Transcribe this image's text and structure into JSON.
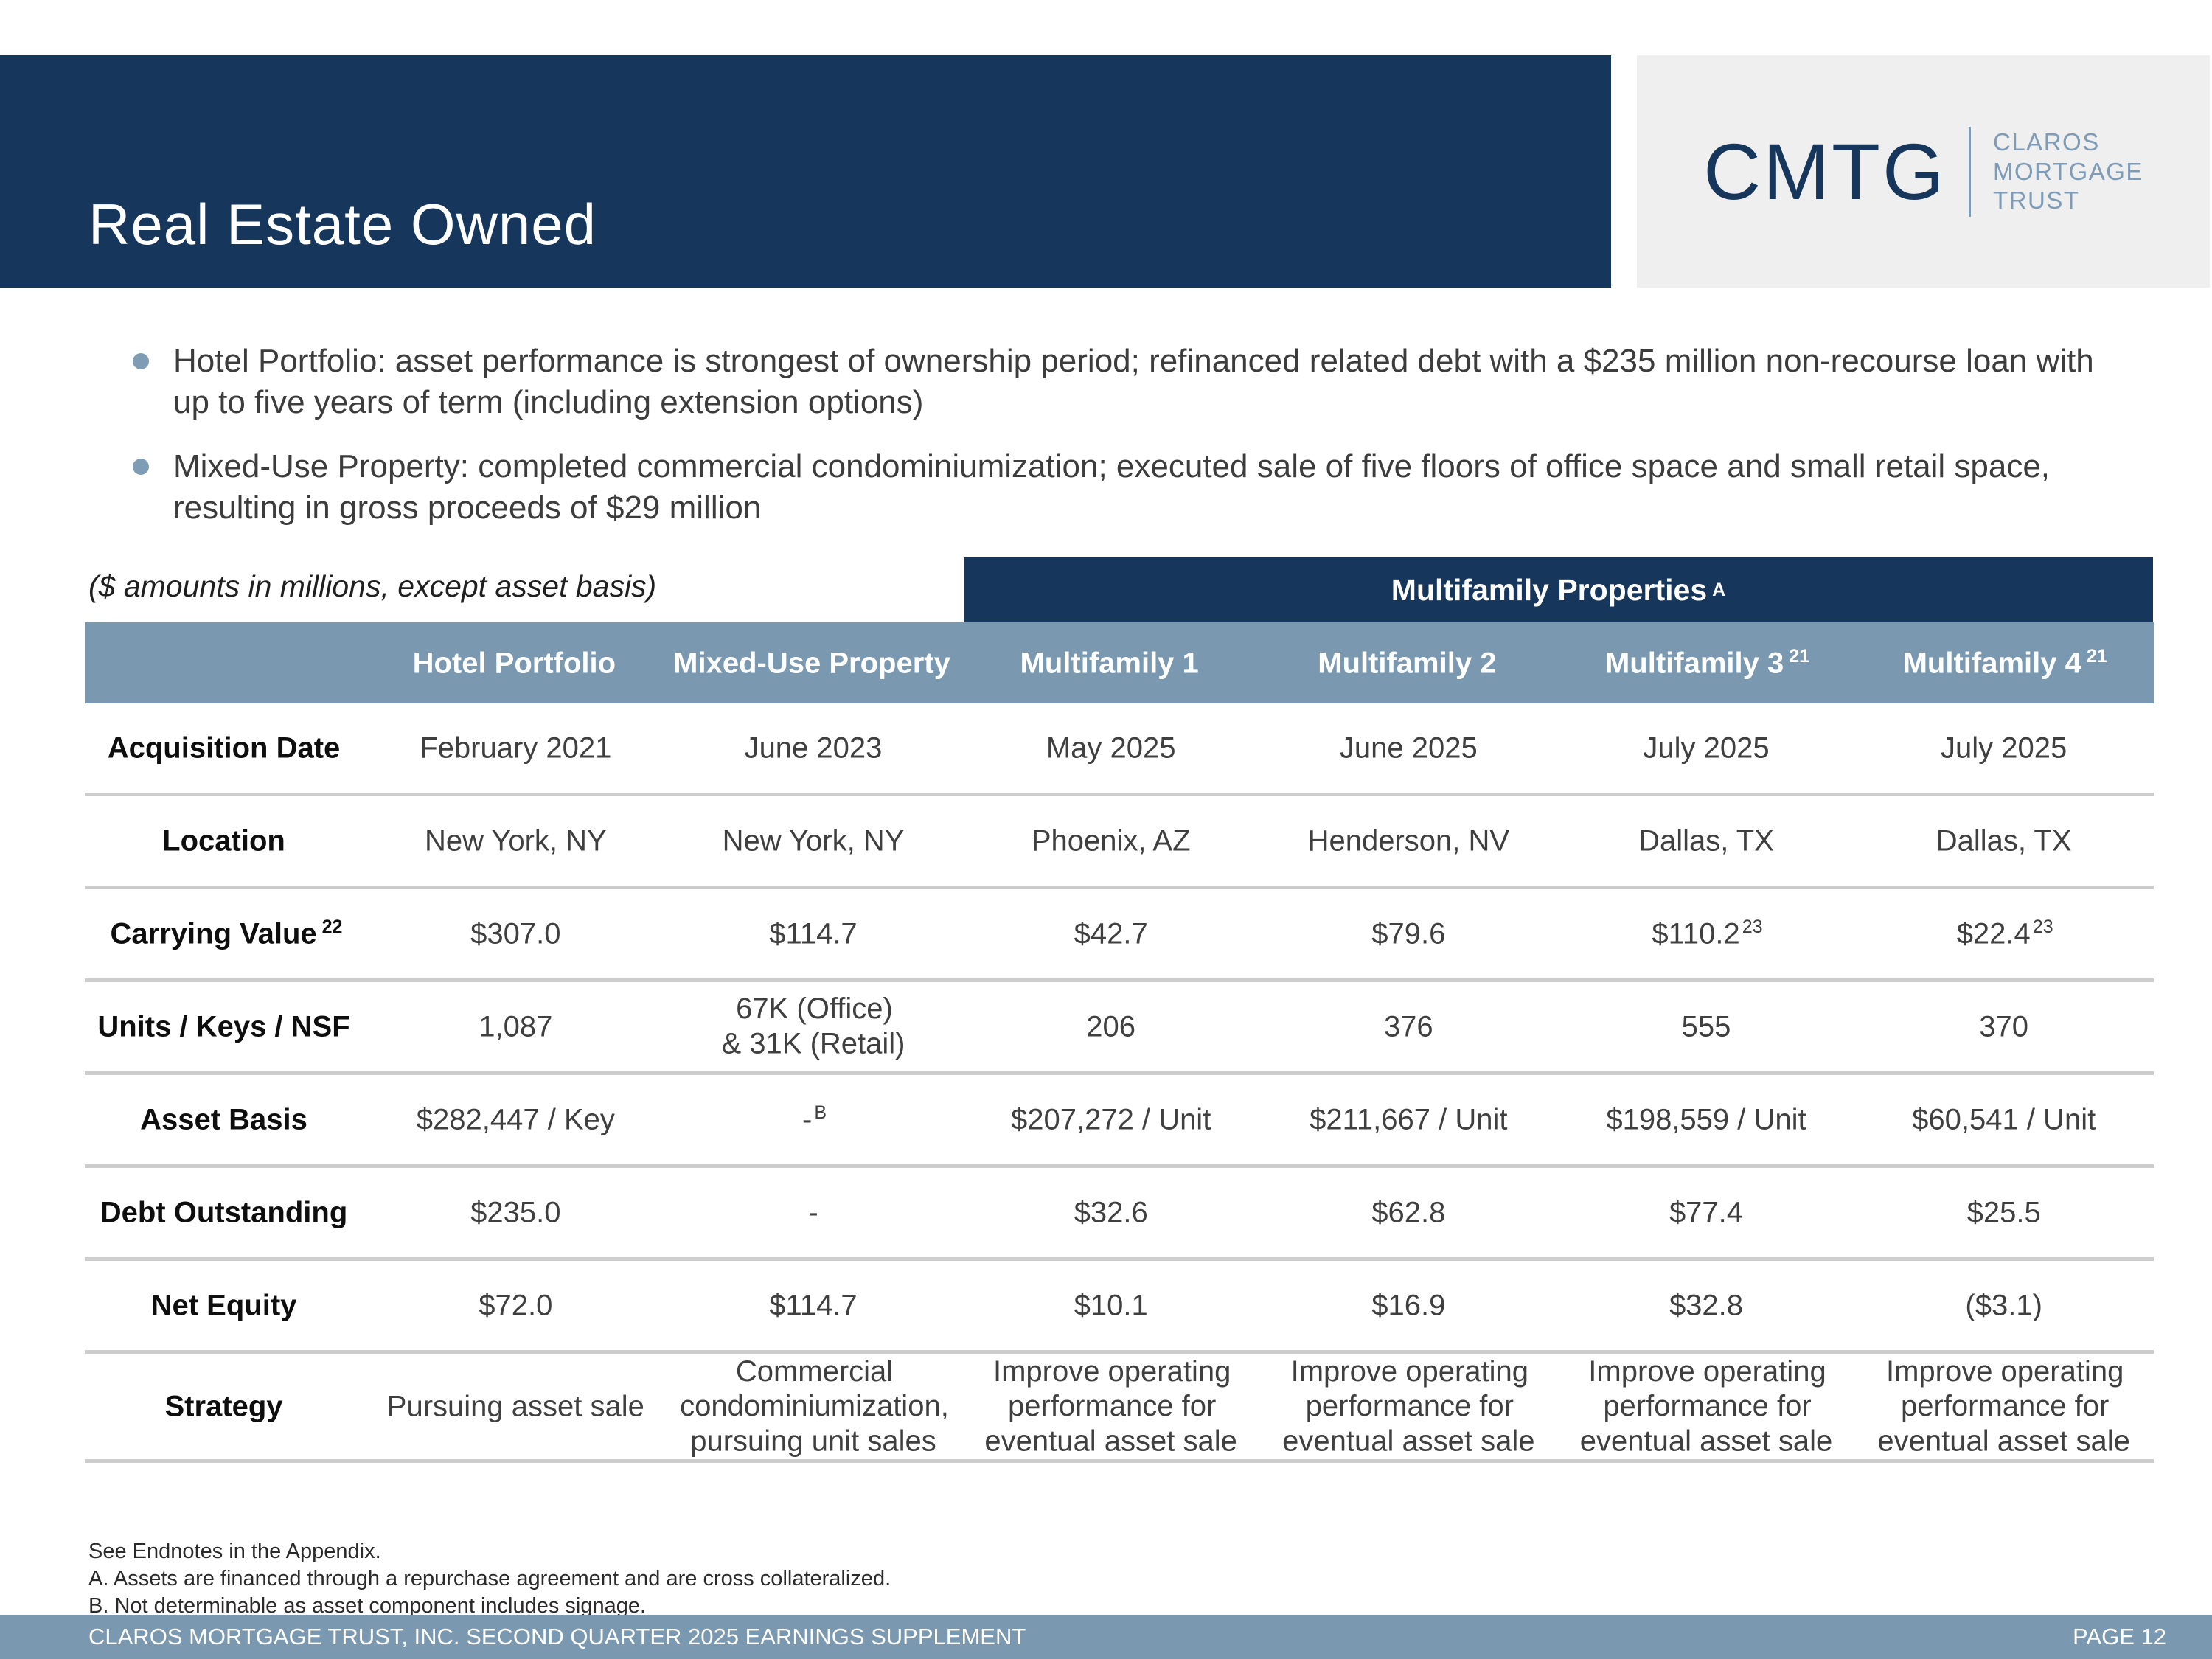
{
  "slide": {
    "title": "Real Estate Owned",
    "caption": "($ amounts in millions, except asset basis)"
  },
  "logo": {
    "ticker": "CMTG",
    "name_line1": "CLAROS",
    "name_line2": "MORTGAGE",
    "name_line3": "TRUST"
  },
  "bullets": [
    {
      "text": "Hotel Portfolio: asset performance is strongest of ownership period; refinanced related debt with a $235 million non-recourse loan with up to five years of term (including extension options)"
    },
    {
      "text": "Mixed-Use Property: completed commercial condominiumization; executed sale of five floors of office space and small retail space, resulting in gross proceeds of $29 million"
    }
  ],
  "table": {
    "group_header": {
      "label": "Multifamily Properties",
      "sup": "A"
    },
    "columns": [
      {
        "label": "Hotel Portfolio"
      },
      {
        "label": "Mixed-Use Property"
      },
      {
        "label": "Multifamily 1"
      },
      {
        "label": "Multifamily 2"
      },
      {
        "label": "Multifamily 3",
        "sup": "21"
      },
      {
        "label": "Multifamily 4",
        "sup": "21"
      }
    ],
    "rows": [
      {
        "label": "Acquisition Date",
        "cells": [
          {
            "text": "February 2021"
          },
          {
            "text": "June 2023"
          },
          {
            "text": "May 2025"
          },
          {
            "text": "June 2025"
          },
          {
            "text": "July 2025"
          },
          {
            "text": "July 2025"
          }
        ]
      },
      {
        "label": "Location",
        "cells": [
          {
            "text": "New York, NY"
          },
          {
            "text": "New York, NY"
          },
          {
            "text": "Phoenix, AZ"
          },
          {
            "text": "Henderson, NV"
          },
          {
            "text": "Dallas, TX"
          },
          {
            "text": "Dallas, TX"
          }
        ]
      },
      {
        "label": "Carrying Value",
        "label_sup": "22",
        "cells": [
          {
            "text": "$307.0"
          },
          {
            "text": "$114.7"
          },
          {
            "text": "$42.7"
          },
          {
            "text": "$79.6"
          },
          {
            "text": "$110.2",
            "sup": "23"
          },
          {
            "text": "$22.4",
            "sup": "23"
          }
        ]
      },
      {
        "label": "Units / Keys / NSF",
        "cells": [
          {
            "text": "1,087"
          },
          {
            "text": "67K (Office)\n& 31K (Retail)"
          },
          {
            "text": "206"
          },
          {
            "text": "376"
          },
          {
            "text": "555"
          },
          {
            "text": "370"
          }
        ]
      },
      {
        "label": "Asset Basis",
        "cells": [
          {
            "text": "$282,447 / Key"
          },
          {
            "text": "-",
            "sup": "B"
          },
          {
            "text": "$207,272 / Unit"
          },
          {
            "text": "$211,667 / Unit"
          },
          {
            "text": "$198,559 / Unit"
          },
          {
            "text": "$60,541 / Unit"
          }
        ]
      },
      {
        "label": "Debt Outstanding",
        "cells": [
          {
            "text": "$235.0"
          },
          {
            "text": "-"
          },
          {
            "text": "$32.6"
          },
          {
            "text": "$62.8"
          },
          {
            "text": "$77.4"
          },
          {
            "text": "$25.5"
          }
        ]
      },
      {
        "label": "Net Equity",
        "cells": [
          {
            "text": "$72.0"
          },
          {
            "text": "$114.7"
          },
          {
            "text": "$10.1"
          },
          {
            "text": "$16.9"
          },
          {
            "text": "$32.8"
          },
          {
            "text": "($3.1)"
          }
        ]
      },
      {
        "label": "Strategy",
        "cells": [
          {
            "text": "Pursuing asset sale"
          },
          {
            "text": "Commercial\ncondominiumization,\npursuing unit sales"
          },
          {
            "text": "Improve operating\nperformance for\neventual asset sale"
          },
          {
            "text": "Improve operating\nperformance for\neventual asset sale"
          },
          {
            "text": "Improve operating\nperformance for\neventual asset sale"
          },
          {
            "text": "Improve operating\nperformance for\neventual asset sale"
          }
        ]
      }
    ]
  },
  "footnotes": [
    "See Endnotes in the Appendix.",
    "A. Assets are financed through a repurchase agreement and are cross collateralized.",
    "B. Not determinable as asset component includes signage."
  ],
  "footer": {
    "left": "CLAROS MORTGAGE TRUST, INC. SECOND QUARTER 2025 EARNINGS SUPPLEMENT",
    "right": "PAGE 12"
  },
  "colors": {
    "navy": "#16365C",
    "header_blue": "#7A99B0",
    "logo_text_blue": "#7E9CB8",
    "bullet_dot": "#7F9CB5",
    "separator": "#CDCDCD",
    "logo_bg": "#EFEFEF",
    "body_text": "#3F3F3F"
  }
}
